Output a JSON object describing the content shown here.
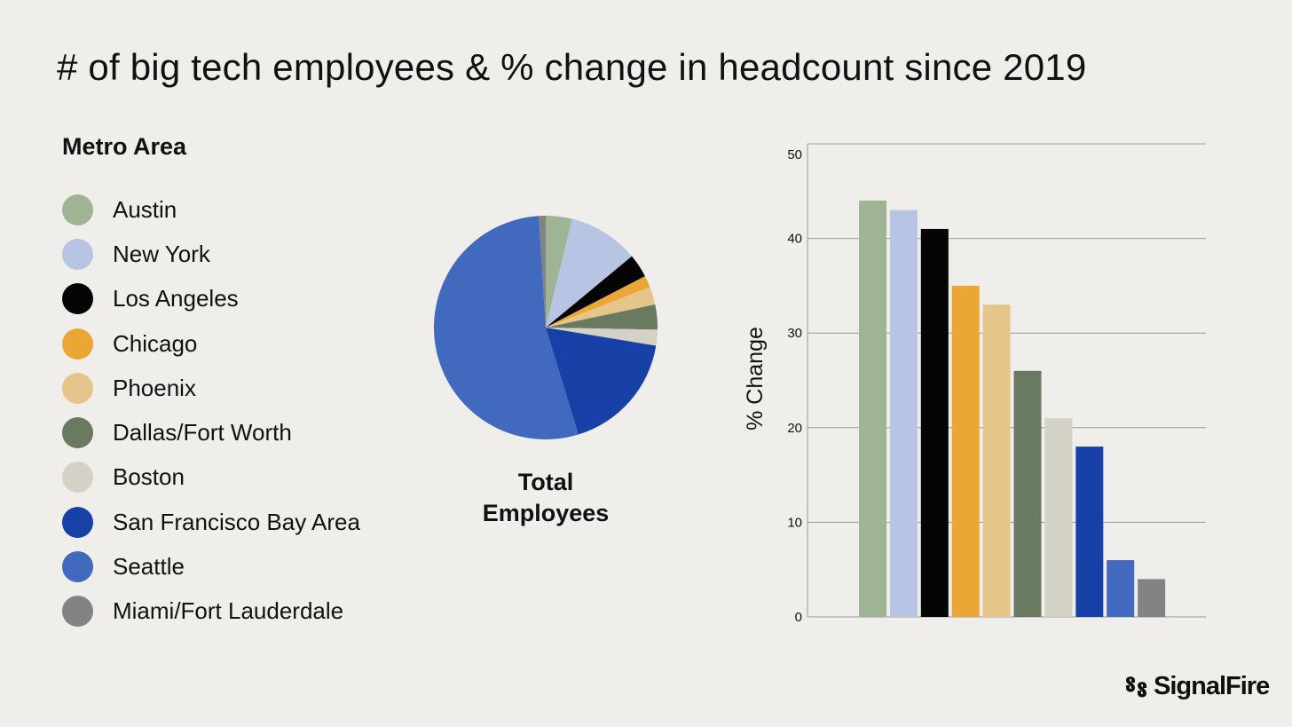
{
  "title": "# of big tech employees & % change in headcount since 2019",
  "legend": {
    "heading": "Metro Area",
    "items": [
      {
        "label": "Austin",
        "color": "#9fb495"
      },
      {
        "label": "New York",
        "color": "#b7c4e3"
      },
      {
        "label": "Los Angeles",
        "color": "#050505"
      },
      {
        "label": "Chicago",
        "color": "#eba735"
      },
      {
        "label": "Phoenix",
        "color": "#e6c58a"
      },
      {
        "label": "Dallas/Fort Worth",
        "color": "#697a61"
      },
      {
        "label": "Boston",
        "color": "#d4d1c6"
      },
      {
        "label": "San Francisco Bay Area",
        "color": "#1741a6"
      },
      {
        "label": "Seattle",
        "color": "#4169be"
      },
      {
        "label": "Miami/Fort Lauderdale",
        "color": "#838386"
      }
    ]
  },
  "pie_caption": {
    "line1": "Total",
    "line2": "Employees"
  },
  "brand": {
    "name": "SignalFire"
  },
  "chart_data": [
    {
      "type": "pie",
      "title": "",
      "caption": "Total Employees",
      "categories": [
        "Austin",
        "New York",
        "Los Angeles",
        "Chicago",
        "Phoenix",
        "Dallas/Fort Worth",
        "Boston",
        "San Francisco Bay Area",
        "Seattle",
        "Miami/Fort Lauderdale"
      ],
      "values": [
        3.8,
        10.2,
        3.4,
        1.7,
        2.6,
        3.6,
        2.3,
        17.7,
        53.7,
        1.0
      ],
      "colors": [
        "#9fb495",
        "#b7c4e3",
        "#050505",
        "#eba735",
        "#e6c58a",
        "#697a61",
        "#d4d1c6",
        "#1741a6",
        "#4169be",
        "#838386"
      ],
      "legend_position": "left"
    },
    {
      "type": "bar",
      "title": "",
      "categories": [
        "Austin",
        "New York",
        "Los Angeles",
        "Chicago",
        "Phoenix",
        "Dallas/Fort Worth",
        "Boston",
        "San Francisco Bay Area",
        "Seattle",
        "Miami/Fort Lauderdale"
      ],
      "values": [
        44,
        43,
        41,
        35,
        33,
        26,
        21,
        18,
        6,
        4
      ],
      "colors": [
        "#9fb495",
        "#b7c4e3",
        "#050505",
        "#eba735",
        "#e6c58a",
        "#697a61",
        "#d4d1c6",
        "#1741a6",
        "#4169be",
        "#838386"
      ],
      "xlabel": "",
      "ylabel": "% Change",
      "ylim": [
        0,
        50
      ],
      "yticks": [
        0,
        10,
        20,
        30,
        40,
        50
      ],
      "grid": true
    }
  ]
}
